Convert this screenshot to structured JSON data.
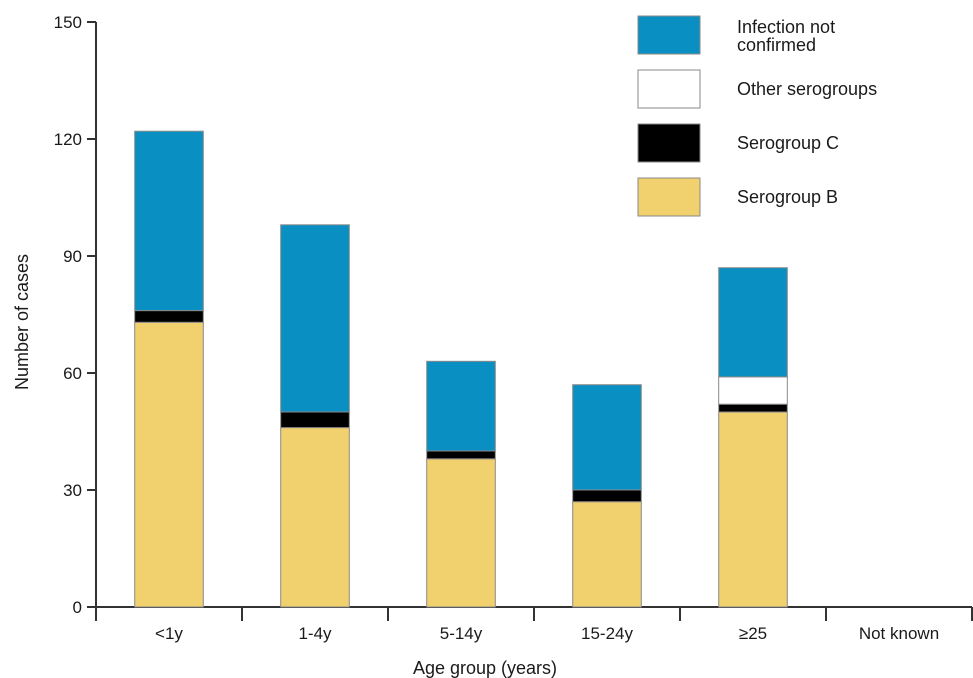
{
  "chart_data": {
    "type": "bar",
    "stacked": true,
    "title": "",
    "xlabel": "Age group (years)",
    "ylabel": "Number of cases",
    "ylim": [
      0,
      150
    ],
    "yticks": [
      0,
      30,
      60,
      90,
      120,
      150
    ],
    "categories": [
      "<1y",
      "1-4y",
      "5-14y",
      "15-24y",
      "≥25",
      "Not known"
    ],
    "series": [
      {
        "name": "Serogroup B",
        "color": "#f1d06e",
        "values": [
          73,
          46,
          38,
          27,
          50,
          0
        ]
      },
      {
        "name": "Serogroup C",
        "color": "#000000",
        "values": [
          3,
          4,
          2,
          3,
          2,
          0
        ]
      },
      {
        "name": "Other serogroups",
        "color": "#ffffff",
        "values": [
          0,
          0,
          0,
          0,
          7,
          0
        ]
      },
      {
        "name": "Infection not confirmed",
        "color": "#0a8fc2",
        "values": [
          46,
          48,
          23,
          27,
          28,
          0
        ]
      }
    ],
    "legend": {
      "placement": "top-right",
      "order": [
        "Infection not confirmed",
        "Other serogroups",
        "Serogroup C",
        "Serogroup B"
      ],
      "lines": {
        "Infection not confirmed": [
          "Infection not",
          "confirmed"
        ],
        "Other serogroups": [
          "Other serogroups"
        ],
        "Serogroup C": [
          "Serogroup C"
        ],
        "Serogroup B": [
          "Serogroup B"
        ]
      }
    },
    "grid": false
  }
}
